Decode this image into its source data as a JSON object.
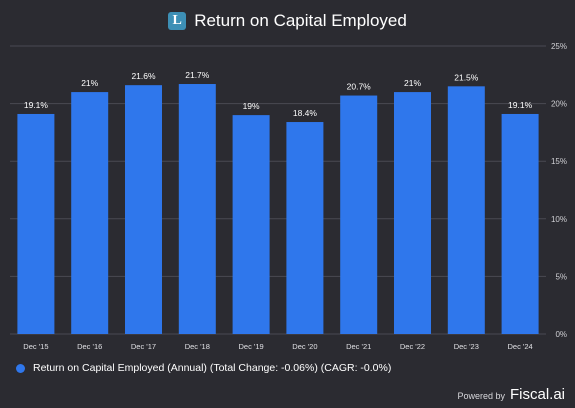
{
  "header": {
    "logo_letter": "L",
    "title": "Return on Capital Employed"
  },
  "chart_data": {
    "type": "bar",
    "title": "Return on Capital Employed",
    "categories": [
      "Dec '15",
      "Dec '16",
      "Dec '17",
      "Dec '18",
      "Dec '19",
      "Dec '20",
      "Dec '21",
      "Dec '22",
      "Dec '23",
      "Dec '24"
    ],
    "series": [
      {
        "name": "Return on Capital Employed (Annual) (Total Change: -0.06%) (CAGR: -0.0%)",
        "values": [
          19.1,
          21,
          21.6,
          21.7,
          19,
          18.4,
          20.7,
          21,
          21.5,
          19.1
        ],
        "data_labels": [
          "19.1%",
          "21%",
          "21.6%",
          "21.7%",
          "19%",
          "18.4%",
          "20.7%",
          "21%",
          "21.5%",
          "19.1%"
        ]
      }
    ],
    "y_ticks": [
      "0%",
      "5%",
      "10%",
      "15%",
      "20%",
      "25%"
    ],
    "y_tick_values": [
      0,
      5,
      10,
      15,
      20,
      25
    ],
    "ylim": [
      0,
      25
    ],
    "y_axis_side": "right",
    "grid": true,
    "legend_position": "bottom-left",
    "bar_color": "#2f77ec",
    "grid_color": "#4a4a52"
  },
  "legend": {
    "label": "Return on Capital Employed (Annual) (Total Change: -0.06%) (CAGR: -0.0%)"
  },
  "footer": {
    "powered_label": "Powered by",
    "brand": "Fiscal.ai"
  },
  "colors": {
    "background": "#2b2b31",
    "bar": "#2f77ec",
    "logo": "#3d8fb5"
  }
}
